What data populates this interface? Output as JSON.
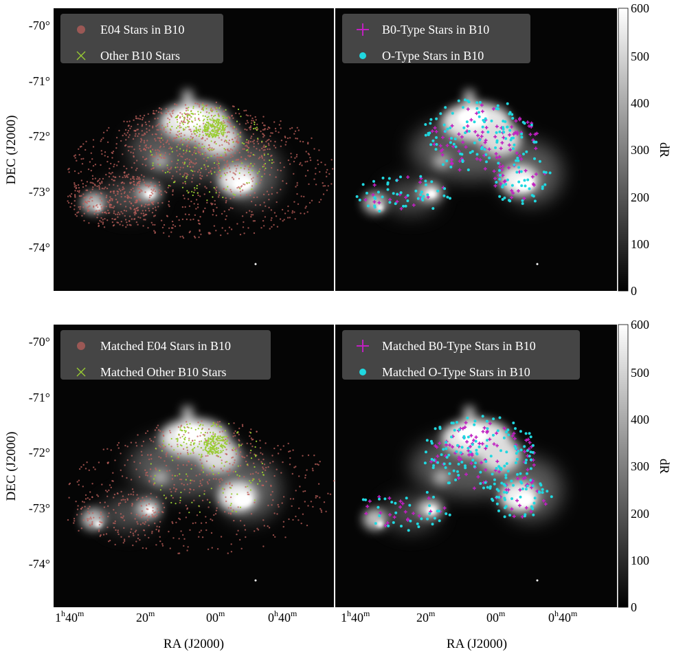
{
  "chart_data": [
    {
      "type": "scatter",
      "panel": "top-left",
      "legend_position": "top-left",
      "series": [
        {
          "name": "E04 Stars in B10",
          "marker": "circle",
          "color": "#c0615c"
        },
        {
          "name": "Other B10 Stars",
          "marker": "x",
          "color": "#9acd32"
        }
      ],
      "ylabel": "DEC (J2000)",
      "yticks": [
        "-70°",
        "-71°",
        "-72°",
        "-73°",
        "-74°"
      ]
    },
    {
      "type": "scatter",
      "panel": "top-right",
      "legend_position": "top-left",
      "series": [
        {
          "name": "B0-Type Stars in B10",
          "marker": "plus",
          "color": "#c020c0"
        },
        {
          "name": "O-Type Stars in B10",
          "marker": "circle",
          "color": "#20d8e0"
        }
      ]
    },
    {
      "type": "scatter",
      "panel": "bottom-left",
      "legend_position": "top-left",
      "series": [
        {
          "name": "Matched E04 Stars in B10",
          "marker": "circle",
          "color": "#c0615c"
        },
        {
          "name": "Matched Other B10 Stars",
          "marker": "x",
          "color": "#9acd32"
        }
      ],
      "ylabel": "DEC (J2000)",
      "yticks": [
        "-70°",
        "-71°",
        "-72°",
        "-73°",
        "-74°"
      ],
      "xlabel": "RA (J2000)",
      "xticks": [
        {
          "main": "1",
          "sup1": "h",
          "rest": "40",
          "sup2": "m"
        },
        {
          "main": "20",
          "sup1": "m",
          "rest": "",
          "sup2": ""
        },
        {
          "main": "00",
          "sup1": "m",
          "rest": "",
          "sup2": ""
        },
        {
          "main": "0",
          "sup1": "h",
          "rest": "40",
          "sup2": "m"
        }
      ]
    },
    {
      "type": "scatter",
      "panel": "bottom-right",
      "legend_position": "top-left",
      "series": [
        {
          "name": "Matched B0-Type Stars in B10",
          "marker": "plus",
          "color": "#c020c0"
        },
        {
          "name": "Matched O-Type Stars in B10",
          "marker": "circle",
          "color": "#20d8e0"
        }
      ],
      "xlabel": "RA (J2000)",
      "xticks": [
        {
          "main": "1",
          "sup1": "h",
          "rest": "40",
          "sup2": "m"
        },
        {
          "main": "20",
          "sup1": "m",
          "rest": "",
          "sup2": ""
        },
        {
          "main": "00",
          "sup1": "m",
          "rest": "",
          "sup2": ""
        },
        {
          "main": "0",
          "sup1": "h",
          "rest": "40",
          "sup2": "m"
        }
      ]
    }
  ],
  "colorbar": {
    "label": "dR",
    "range": [
      0,
      600
    ],
    "ticks": [
      "600",
      "500",
      "400",
      "300",
      "200",
      "100",
      "0"
    ],
    "colormap": "gray"
  }
}
